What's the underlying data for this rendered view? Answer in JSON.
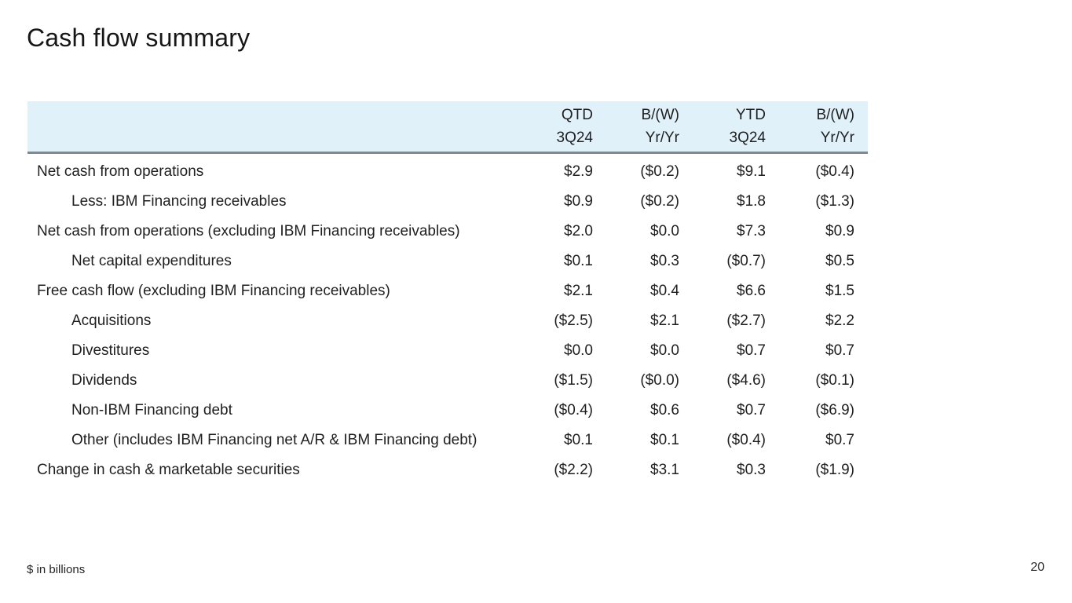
{
  "slide": {
    "title": "Cash flow summary",
    "footnote": "$ in billions",
    "page_number": "20"
  },
  "table": {
    "columns": [
      {
        "line1": "QTD",
        "line2": "3Q24"
      },
      {
        "line1": "B/(W)",
        "line2": "Yr/Yr"
      },
      {
        "line1": "YTD",
        "line2": "3Q24"
      },
      {
        "line1": "B/(W)",
        "line2": "Yr/Yr"
      }
    ],
    "rows": [
      {
        "label": "Net cash from operations",
        "indent": false,
        "values": [
          "$2.9",
          "($0.2)",
          "$9.1",
          "($0.4)"
        ]
      },
      {
        "label": "Less: IBM Financing receivables",
        "indent": true,
        "values": [
          "$0.9",
          "($0.2)",
          "$1.8",
          "($1.3)"
        ]
      },
      {
        "label": "Net cash from operations (excluding IBM Financing receivables)",
        "indent": false,
        "values": [
          "$2.0",
          "$0.0",
          "$7.3",
          "$0.9"
        ]
      },
      {
        "label": "Net capital expenditures",
        "indent": true,
        "values": [
          "$0.1",
          "$0.3",
          "($0.7)",
          "$0.5"
        ]
      },
      {
        "label": "Free cash flow (excluding IBM Financing receivables)",
        "indent": false,
        "values": [
          "$2.1",
          "$0.4",
          "$6.6",
          "$1.5"
        ]
      },
      {
        "label": "Acquisitions",
        "indent": true,
        "values": [
          "($2.5)",
          "$2.1",
          "($2.7)",
          "$2.2"
        ]
      },
      {
        "label": "Divestitures",
        "indent": true,
        "values": [
          "$0.0",
          "$0.0",
          "$0.7",
          "$0.7"
        ]
      },
      {
        "label": "Dividends",
        "indent": true,
        "values": [
          "($1.5)",
          "($0.0)",
          "($4.6)",
          "($0.1)"
        ]
      },
      {
        "label": "Non-IBM Financing debt",
        "indent": true,
        "values": [
          "($0.4)",
          "$0.6",
          "$0.7",
          "($6.9)"
        ]
      },
      {
        "label": "Other (includes IBM Financing net A/R & IBM Financing debt)",
        "indent": true,
        "values": [
          "$0.1",
          "$0.1",
          "($0.4)",
          "$0.7"
        ]
      },
      {
        "label": "Change in cash & marketable securities",
        "indent": false,
        "values": [
          "($2.2)",
          "$3.1",
          "$0.3",
          "($1.9)"
        ]
      }
    ],
    "colors": {
      "header_bg": "#e1f1fa",
      "header_border": "#7d8a92",
      "text": "#1f1f1f"
    }
  }
}
